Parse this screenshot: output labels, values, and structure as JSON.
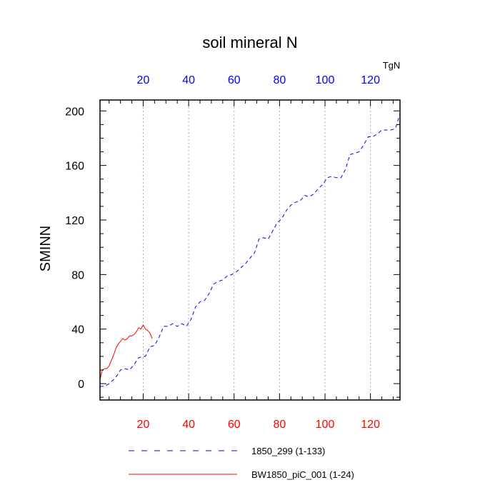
{
  "chart_data": {
    "type": "line",
    "title": "soil mineral N",
    "ylabel": "SMINN",
    "units": "TgN",
    "xlim": [
      1,
      133
    ],
    "ylim": [
      -12,
      208
    ],
    "x_ticks": [
      20,
      40,
      60,
      80,
      100,
      120
    ],
    "y_ticks": [
      0,
      40,
      80,
      120,
      160,
      200
    ],
    "grid": "vertical dotted at x ticks",
    "legend": "bottom",
    "series": [
      {
        "name": "1850_299 (1-133)",
        "color": "#0000ff",
        "style": "dashed",
        "points": [
          [
            1,
            -2
          ],
          [
            3,
            -2
          ],
          [
            5,
            0
          ],
          [
            7,
            3
          ],
          [
            9,
            7
          ],
          [
            10,
            10
          ],
          [
            12,
            11
          ],
          [
            14,
            10
          ],
          [
            16,
            14
          ],
          [
            18,
            19
          ],
          [
            20,
            20
          ],
          [
            21,
            20
          ],
          [
            23,
            27
          ],
          [
            25,
            28
          ],
          [
            27,
            34
          ],
          [
            29,
            42
          ],
          [
            31,
            42
          ],
          [
            33,
            44
          ],
          [
            35,
            42
          ],
          [
            37,
            44
          ],
          [
            39,
            42
          ],
          [
            41,
            47
          ],
          [
            43,
            56
          ],
          [
            45,
            60
          ],
          [
            47,
            61
          ],
          [
            49,
            66
          ],
          [
            51,
            73
          ],
          [
            53,
            75
          ],
          [
            55,
            76
          ],
          [
            57,
            79
          ],
          [
            59,
            80
          ],
          [
            61,
            82
          ],
          [
            63,
            85
          ],
          [
            65,
            88
          ],
          [
            67,
            92
          ],
          [
            69,
            96
          ],
          [
            71,
            106
          ],
          [
            73,
            107
          ],
          [
            75,
            106
          ],
          [
            77,
            112
          ],
          [
            79,
            118
          ],
          [
            81,
            121
          ],
          [
            83,
            127
          ],
          [
            85,
            131
          ],
          [
            87,
            133
          ],
          [
            89,
            134
          ],
          [
            91,
            138
          ],
          [
            93,
            137
          ],
          [
            95,
            139
          ],
          [
            97,
            143
          ],
          [
            99,
            146
          ],
          [
            101,
            151
          ],
          [
            103,
            152
          ],
          [
            105,
            151
          ],
          [
            107,
            151
          ],
          [
            109,
            157
          ],
          [
            111,
            168
          ],
          [
            113,
            169
          ],
          [
            115,
            170
          ],
          [
            117,
            175
          ],
          [
            119,
            181
          ],
          [
            121,
            181
          ],
          [
            123,
            183
          ],
          [
            125,
            186
          ],
          [
            127,
            186
          ],
          [
            129,
            186
          ],
          [
            131,
            187
          ],
          [
            133,
            198
          ]
        ]
      },
      {
        "name": "BW1850_piC_001 (1-24)",
        "color": "#ff0000",
        "style": "solid",
        "points": [
          [
            1,
            3
          ],
          [
            2,
            10
          ],
          [
            3,
            11
          ],
          [
            4,
            11
          ],
          [
            5,
            13
          ],
          [
            6,
            17
          ],
          [
            7,
            21
          ],
          [
            8,
            26
          ],
          [
            9,
            29
          ],
          [
            10,
            31
          ],
          [
            11,
            33
          ],
          [
            12,
            32
          ],
          [
            13,
            33
          ],
          [
            14,
            35
          ],
          [
            15,
            35
          ],
          [
            16,
            36
          ],
          [
            17,
            38
          ],
          [
            18,
            41
          ],
          [
            19,
            40
          ],
          [
            20,
            43
          ],
          [
            21,
            40
          ],
          [
            22,
            39
          ],
          [
            23,
            37
          ],
          [
            24,
            33
          ]
        ]
      }
    ]
  }
}
